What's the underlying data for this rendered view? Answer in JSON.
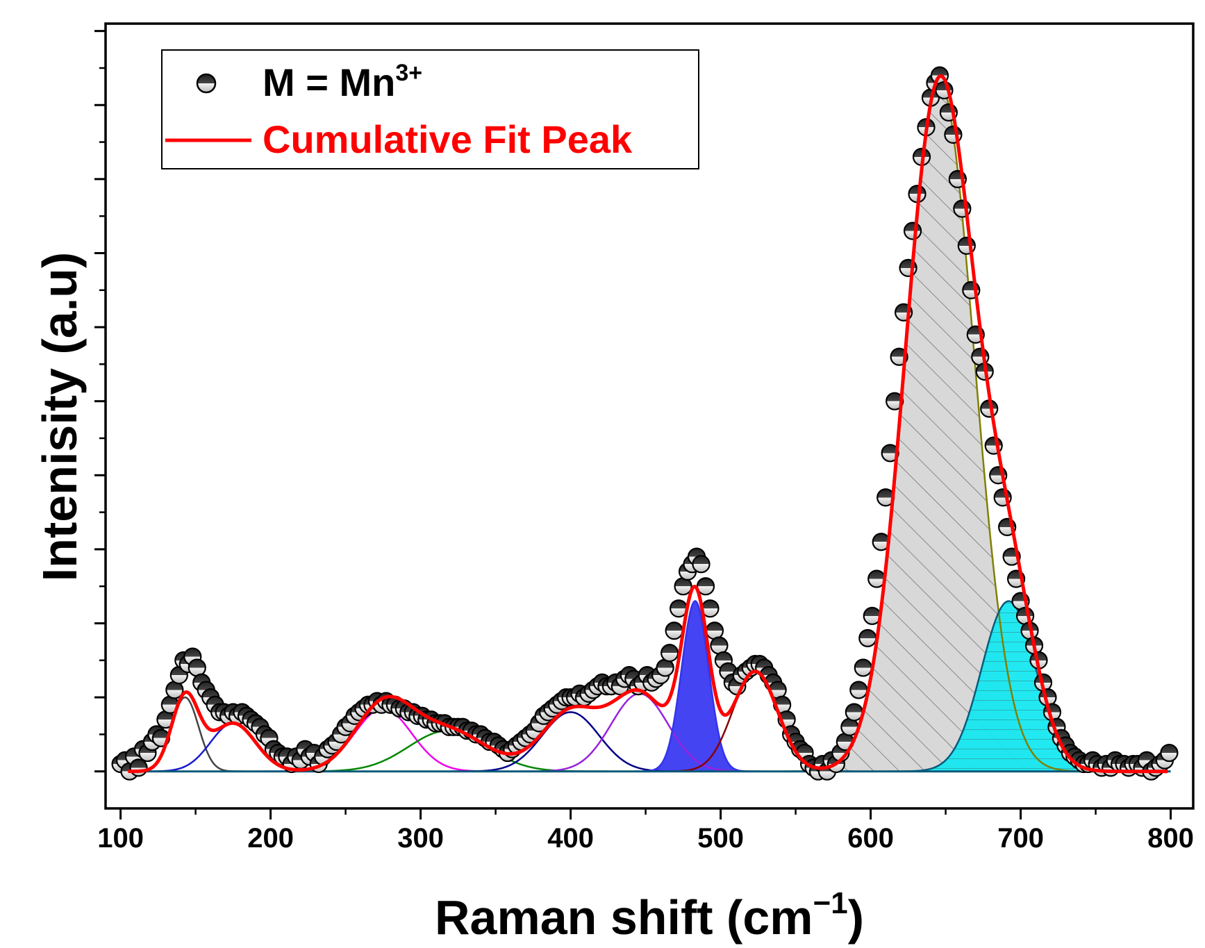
{
  "chart_data": {
    "type": "scatter",
    "title": "",
    "xlabel": "Raman shift (cm",
    "xlabel_sup": "−1",
    "xlabel_close": ")",
    "ylabel": "Intenisity (a.u)",
    "xlim": [
      90,
      815
    ],
    "ylim": [
      -0.04,
      1.02
    ],
    "xticks": [
      100,
      200,
      300,
      400,
      500,
      600,
      700,
      800
    ],
    "xtick_labels": [
      "100",
      "200",
      "300",
      "400",
      "500",
      "600",
      "700",
      "800"
    ],
    "yticks_unlabeled": [
      0,
      0.1,
      0.2,
      0.3,
      0.4,
      0.5,
      0.6,
      0.7,
      0.8,
      0.9,
      1.0
    ],
    "grid": false,
    "legend_position": "top-left",
    "legend": {
      "data_label": "M = Mn",
      "data_sup": "3+",
      "fit_label": "Cumulative Fit Peak"
    },
    "baseline": 0.01,
    "observed_points": [
      [
        100,
        0.02
      ],
      [
        103,
        0.025
      ],
      [
        106,
        0.01
      ],
      [
        109,
        0.03
      ],
      [
        112,
        0.015
      ],
      [
        115,
        0.04
      ],
      [
        118,
        0.035
      ],
      [
        121,
        0.05
      ],
      [
        124,
        0.06
      ],
      [
        127,
        0.055
      ],
      [
        130,
        0.08
      ],
      [
        133,
        0.1
      ],
      [
        136,
        0.12
      ],
      [
        139,
        0.14
      ],
      [
        142,
        0.16
      ],
      [
        145,
        0.155
      ],
      [
        148,
        0.165
      ],
      [
        151,
        0.15
      ],
      [
        154,
        0.13
      ],
      [
        157,
        0.12
      ],
      [
        160,
        0.11
      ],
      [
        163,
        0.1
      ],
      [
        166,
        0.09
      ],
      [
        169,
        0.09
      ],
      [
        172,
        0.085
      ],
      [
        175,
        0.09
      ],
      [
        178,
        0.085
      ],
      [
        181,
        0.09
      ],
      [
        184,
        0.085
      ],
      [
        187,
        0.08
      ],
      [
        190,
        0.075
      ],
      [
        193,
        0.07
      ],
      [
        196,
        0.06
      ],
      [
        199,
        0.055
      ],
      [
        202,
        0.04
      ],
      [
        205,
        0.035
      ],
      [
        208,
        0.03
      ],
      [
        211,
        0.03
      ],
      [
        214,
        0.02
      ],
      [
        217,
        0.03
      ],
      [
        220,
        0.025
      ],
      [
        223,
        0.04
      ],
      [
        226,
        0.03
      ],
      [
        229,
        0.035
      ],
      [
        232,
        0.02
      ],
      [
        235,
        0.03
      ],
      [
        238,
        0.04
      ],
      [
        241,
        0.045
      ],
      [
        244,
        0.05
      ],
      [
        247,
        0.06
      ],
      [
        250,
        0.07
      ],
      [
        253,
        0.075
      ],
      [
        256,
        0.085
      ],
      [
        259,
        0.09
      ],
      [
        262,
        0.095
      ],
      [
        265,
        0.1
      ],
      [
        268,
        0.1
      ],
      [
        271,
        0.105
      ],
      [
        274,
        0.1
      ],
      [
        277,
        0.105
      ],
      [
        280,
        0.1
      ],
      [
        283,
        0.1
      ],
      [
        286,
        0.095
      ],
      [
        289,
        0.095
      ],
      [
        292,
        0.09
      ],
      [
        295,
        0.09
      ],
      [
        298,
        0.085
      ],
      [
        301,
        0.085
      ],
      [
        304,
        0.08
      ],
      [
        307,
        0.08
      ],
      [
        310,
        0.075
      ],
      [
        313,
        0.075
      ],
      [
        316,
        0.075
      ],
      [
        319,
        0.07
      ],
      [
        322,
        0.07
      ],
      [
        325,
        0.07
      ],
      [
        328,
        0.07
      ],
      [
        331,
        0.065
      ],
      [
        334,
        0.065
      ],
      [
        337,
        0.06
      ],
      [
        340,
        0.06
      ],
      [
        343,
        0.055
      ],
      [
        346,
        0.05
      ],
      [
        349,
        0.05
      ],
      [
        352,
        0.045
      ],
      [
        355,
        0.04
      ],
      [
        358,
        0.035
      ],
      [
        361,
        0.04
      ],
      [
        364,
        0.045
      ],
      [
        367,
        0.05
      ],
      [
        370,
        0.055
      ],
      [
        373,
        0.06
      ],
      [
        376,
        0.065
      ],
      [
        379,
        0.075
      ],
      [
        382,
        0.085
      ],
      [
        385,
        0.09
      ],
      [
        388,
        0.095
      ],
      [
        391,
        0.1
      ],
      [
        394,
        0.105
      ],
      [
        397,
        0.11
      ],
      [
        400,
        0.11
      ],
      [
        403,
        0.11
      ],
      [
        406,
        0.115
      ],
      [
        409,
        0.11
      ],
      [
        412,
        0.115
      ],
      [
        415,
        0.12
      ],
      [
        418,
        0.125
      ],
      [
        421,
        0.13
      ],
      [
        424,
        0.125
      ],
      [
        427,
        0.125
      ],
      [
        430,
        0.13
      ],
      [
        433,
        0.125
      ],
      [
        436,
        0.135
      ],
      [
        439,
        0.14
      ],
      [
        442,
        0.135
      ],
      [
        445,
        0.125
      ],
      [
        448,
        0.13
      ],
      [
        451,
        0.14
      ],
      [
        454,
        0.13
      ],
      [
        457,
        0.135
      ],
      [
        460,
        0.14
      ],
      [
        463,
        0.15
      ],
      [
        466,
        0.17
      ],
      [
        469,
        0.2
      ],
      [
        472,
        0.23
      ],
      [
        475,
        0.26
      ],
      [
        478,
        0.28
      ],
      [
        481,
        0.29
      ],
      [
        484,
        0.3
      ],
      [
        487,
        0.29
      ],
      [
        490,
        0.26
      ],
      [
        493,
        0.23
      ],
      [
        496,
        0.2
      ],
      [
        499,
        0.18
      ],
      [
        502,
        0.16
      ],
      [
        505,
        0.145
      ],
      [
        508,
        0.13
      ],
      [
        511,
        0.125
      ],
      [
        514,
        0.14
      ],
      [
        517,
        0.145
      ],
      [
        520,
        0.15
      ],
      [
        523,
        0.155
      ],
      [
        526,
        0.155
      ],
      [
        529,
        0.15
      ],
      [
        532,
        0.14
      ],
      [
        535,
        0.13
      ],
      [
        538,
        0.12
      ],
      [
        541,
        0.1
      ],
      [
        544,
        0.08
      ],
      [
        547,
        0.06
      ],
      [
        550,
        0.05
      ],
      [
        553,
        0.04
      ],
      [
        556,
        0.035
      ],
      [
        559,
        0.02
      ],
      [
        562,
        0.015
      ],
      [
        565,
        0.01
      ],
      [
        568,
        0.02
      ],
      [
        571,
        0.01
      ],
      [
        574,
        0.025
      ],
      [
        577,
        0.02
      ],
      [
        580,
        0.035
      ],
      [
        583,
        0.05
      ],
      [
        586,
        0.07
      ],
      [
        589,
        0.09
      ],
      [
        592,
        0.12
      ],
      [
        595,
        0.15
      ],
      [
        598,
        0.19
      ],
      [
        601,
        0.22
      ],
      [
        604,
        0.27
      ],
      [
        607,
        0.32
      ],
      [
        610,
        0.38
      ],
      [
        613,
        0.44
      ],
      [
        616,
        0.51
      ],
      [
        619,
        0.57
      ],
      [
        622,
        0.63
      ],
      [
        625,
        0.69
      ],
      [
        628,
        0.74
      ],
      [
        631,
        0.79
      ],
      [
        634,
        0.84
      ],
      [
        637,
        0.88
      ],
      [
        640,
        0.92
      ],
      [
        643,
        0.94
      ],
      [
        646,
        0.95
      ],
      [
        649,
        0.93
      ],
      [
        652,
        0.9
      ],
      [
        655,
        0.87
      ],
      [
        658,
        0.81
      ],
      [
        661,
        0.77
      ],
      [
        664,
        0.72
      ],
      [
        667,
        0.66
      ],
      [
        670,
        0.6
      ],
      [
        673,
        0.57
      ],
      [
        676,
        0.55
      ],
      [
        679,
        0.5
      ],
      [
        682,
        0.45
      ],
      [
        685,
        0.41
      ],
      [
        688,
        0.38
      ],
      [
        691,
        0.34
      ],
      [
        694,
        0.3
      ],
      [
        697,
        0.27
      ],
      [
        700,
        0.24
      ],
      [
        703,
        0.22
      ],
      [
        706,
        0.2
      ],
      [
        709,
        0.18
      ],
      [
        712,
        0.16
      ],
      [
        715,
        0.13
      ],
      [
        718,
        0.11
      ],
      [
        721,
        0.09
      ],
      [
        724,
        0.07
      ],
      [
        727,
        0.055
      ],
      [
        730,
        0.045
      ],
      [
        733,
        0.035
      ],
      [
        736,
        0.03
      ],
      [
        739,
        0.025
      ],
      [
        742,
        0.02
      ],
      [
        745,
        0.02
      ],
      [
        748,
        0.025
      ],
      [
        751,
        0.02
      ],
      [
        754,
        0.015
      ],
      [
        757,
        0.02
      ],
      [
        760,
        0.015
      ],
      [
        763,
        0.025
      ],
      [
        766,
        0.02
      ],
      [
        769,
        0.02
      ],
      [
        772,
        0.015
      ],
      [
        775,
        0.02
      ],
      [
        778,
        0.02
      ],
      [
        781,
        0.015
      ],
      [
        784,
        0.025
      ],
      [
        787,
        0.01
      ],
      [
        790,
        0.015
      ],
      [
        793,
        0.02
      ],
      [
        796,
        0.025
      ],
      [
        799,
        0.035
      ]
    ],
    "component_peaks": [
      {
        "center": 143,
        "amplitude": 0.1,
        "width": 9,
        "color": "#444444",
        "fill": "none"
      },
      {
        "center": 175,
        "amplitude": 0.065,
        "width": 15,
        "color": "#1a1acc",
        "fill": "none"
      },
      {
        "center": 275,
        "amplitude": 0.085,
        "width": 19,
        "color": "#ee00ee",
        "fill": "none"
      },
      {
        "center": 318,
        "amplitude": 0.055,
        "width": 26,
        "color": "#008800",
        "fill": "none"
      },
      {
        "center": 400,
        "amplitude": 0.08,
        "width": 19,
        "color": "#000088",
        "fill": "none"
      },
      {
        "center": 446,
        "amplitude": 0.105,
        "width": 19,
        "color": "#9922dd",
        "fill": "none"
      },
      {
        "center": 483,
        "amplitude": 0.23,
        "width": 9,
        "color": "#3333ee",
        "fill": "#3a3af2"
      },
      {
        "center": 523,
        "amplitude": 0.135,
        "width": 15,
        "color": "#880000",
        "fill": "none"
      },
      {
        "center": 646,
        "amplitude": 0.93,
        "width": 23,
        "color": "#808000",
        "fill": "#d4d4d4"
      },
      {
        "center": 692,
        "amplitude": 0.23,
        "width": 18,
        "color": "#0b5a7a",
        "fill": "#18e8f0"
      }
    ],
    "colors": {
      "fit": "#ff0000",
      "marker_edge": "#000000",
      "baseline": "#0b5a7a",
      "hatch": "#555555",
      "hline": "#333333"
    }
  }
}
